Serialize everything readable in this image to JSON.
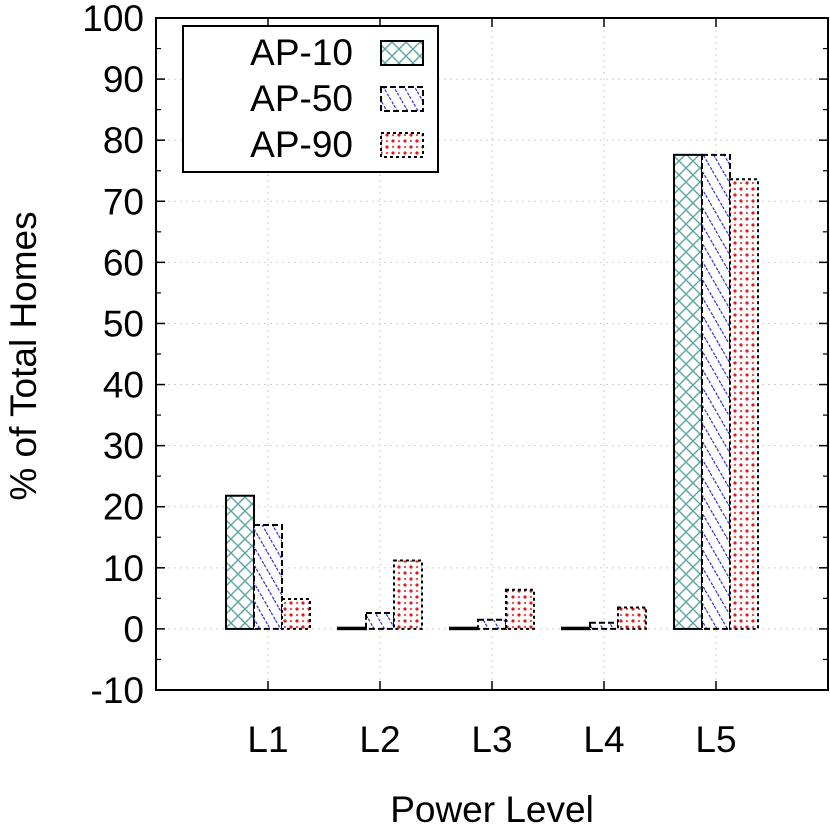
{
  "chart_data": {
    "type": "bar",
    "categories": [
      "L1",
      "L2",
      "L3",
      "L4",
      "L5"
    ],
    "series": [
      {
        "name": "AP-10",
        "values": [
          21.8,
          0.2,
          0.2,
          0.2,
          77.6
        ],
        "color": "#5aa6a0",
        "pattern": "crosshatch",
        "border": "solid"
      },
      {
        "name": "AP-50",
        "values": [
          17.0,
          2.6,
          1.5,
          1.0,
          77.6
        ],
        "color": "#1c1cd6",
        "pattern": "diagonal",
        "border": "dashed"
      },
      {
        "name": "AP-90",
        "values": [
          4.9,
          11.2,
          6.4,
          3.5,
          73.6
        ],
        "color": "#e31a1c",
        "pattern": "dots",
        "border": "dotted"
      }
    ],
    "xlabel": "Power Level",
    "ylabel": "% of Total Homes",
    "ylim": [
      -10,
      100
    ],
    "yticks": [
      "-10",
      "0",
      "10",
      "20",
      "30",
      "40",
      "50",
      "60",
      "70",
      "80",
      "90",
      "100"
    ],
    "grid": true,
    "legend_position": "top-left"
  }
}
